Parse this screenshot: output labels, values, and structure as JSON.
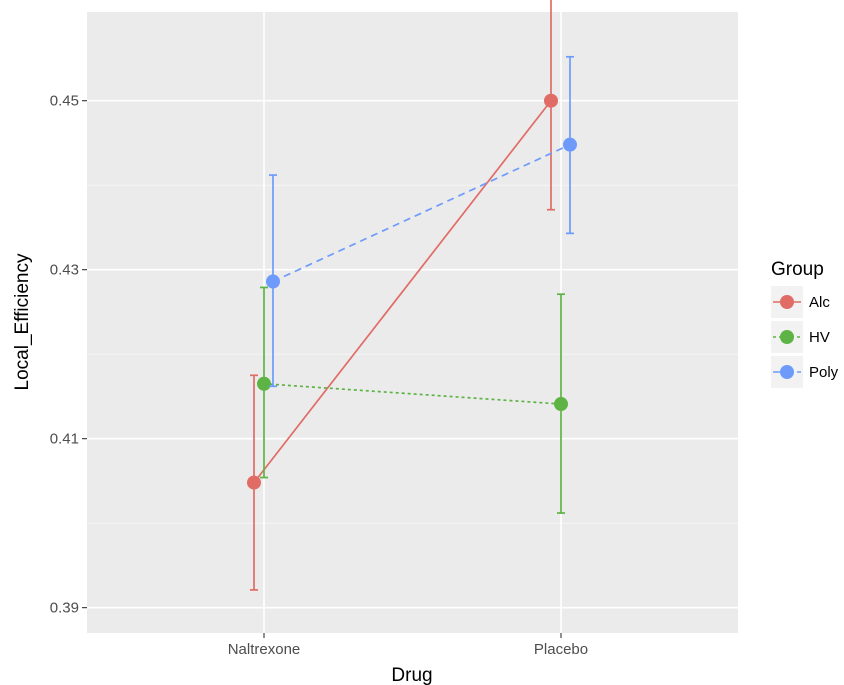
{
  "chart_data": {
    "type": "line",
    "xlabel": "Drug",
    "ylabel": "Local_Efficiency",
    "categories": [
      "Naltrexone",
      "Placebo"
    ],
    "ylim": [
      0.387,
      0.4605
    ],
    "yticks": [
      0.39,
      0.41,
      0.43,
      0.45
    ],
    "ytick_labels": [
      "0.39",
      "0.41",
      "0.43",
      "0.45"
    ],
    "grid": true,
    "legend": {
      "title": "Group",
      "position": "right"
    },
    "series": [
      {
        "name": "Alc",
        "color": "#e06c65",
        "dash": "solid",
        "values": [
          0.4048,
          0.45
        ],
        "error_low": [
          0.3921,
          0.4371
        ],
        "error_high": [
          0.4175,
          0.4629
        ]
      },
      {
        "name": "HV",
        "color": "#5db343",
        "dash": "dotted",
        "values": [
          0.4165,
          0.4141
        ],
        "error_low": [
          0.4054,
          0.4012
        ],
        "error_high": [
          0.4279,
          0.4271
        ]
      },
      {
        "name": "Poly",
        "color": "#6e9bfb",
        "dash": "dashed",
        "values": [
          0.4286,
          0.4448
        ],
        "error_low": [
          0.4162,
          0.4343
        ],
        "error_high": [
          0.4412,
          0.4552
        ]
      }
    ]
  }
}
